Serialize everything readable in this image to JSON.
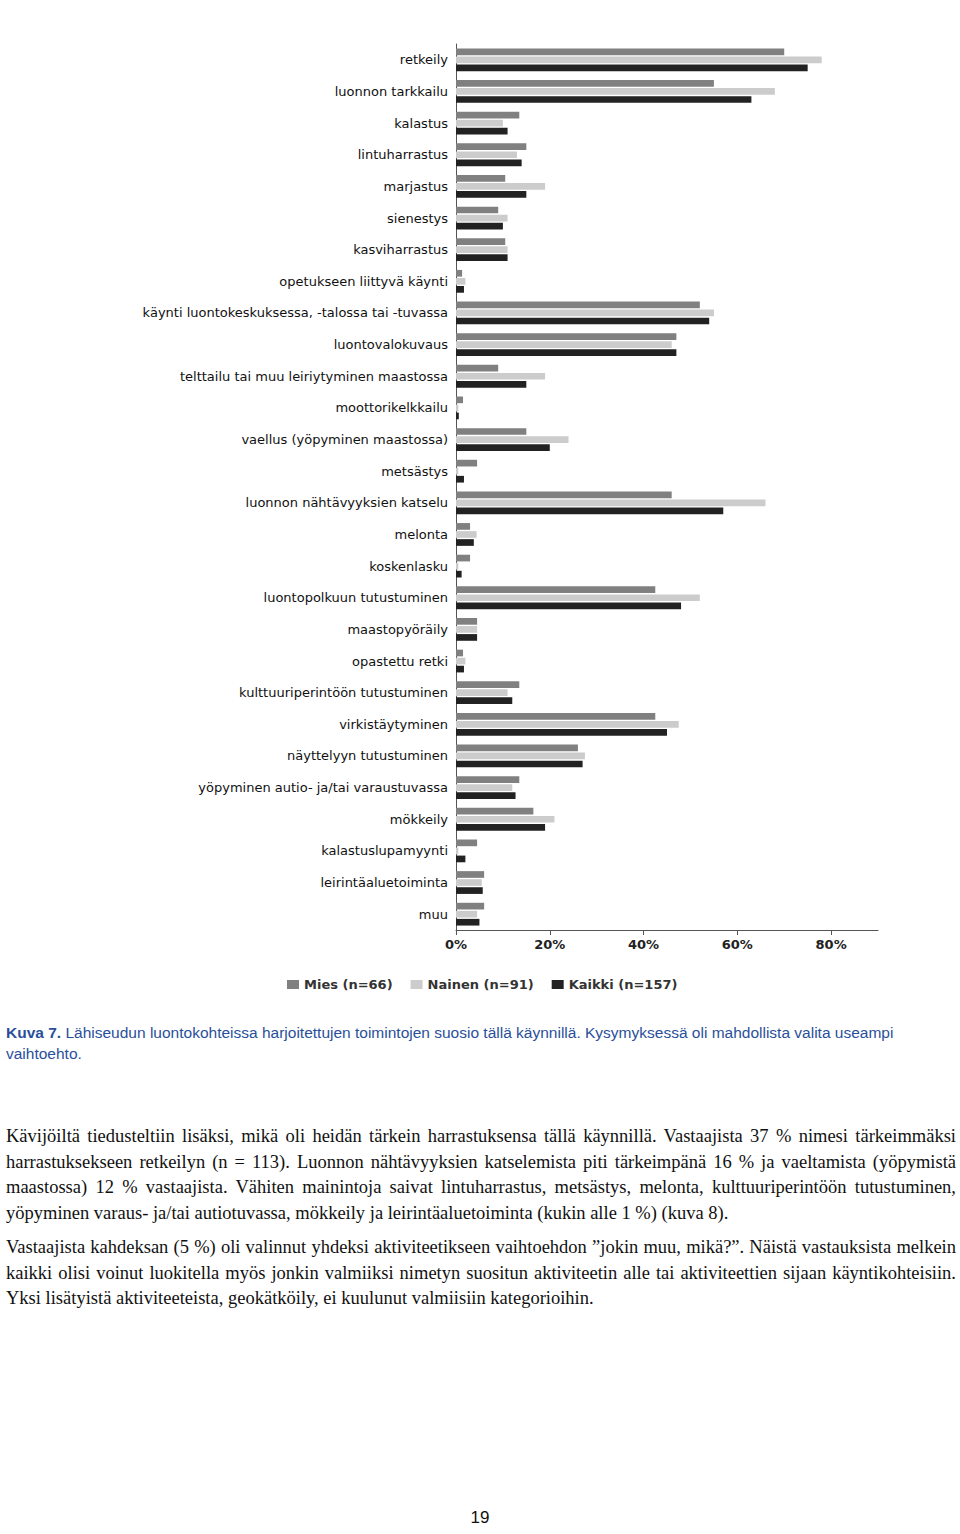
{
  "chart_data": {
    "type": "bar",
    "orientation": "horizontal",
    "grid": false,
    "legend": "bottom",
    "categories": [
      "retkeily",
      "luonnon tarkkailu",
      "kalastus",
      "lintuharrastus",
      "marjastus",
      "sienestys",
      "kasviharrastus",
      "opetukseen liittyvä käynti",
      "käynti luontokeskuksessa, -talossa tai -tuvassa",
      "luontovalokuvaus",
      "telttailu tai muu leiriytyminen maastossa",
      "moottorikelkkailu",
      "vaellus (yöpyminen maastossa)",
      "metsästys",
      "luonnon nähtävyyksien katselu",
      "melonta",
      "koskenlasku",
      "luontopolkuun tutustuminen",
      "maastopyöräily",
      "opastettu retki",
      "kulttuuriperintöön tutustuminen",
      "virkistäytyminen",
      "näyttelyyn tutustuminen",
      "yöpyminen autio- ja/tai varaustuvassa",
      "mökkeily",
      "kalastuslupamyynti",
      "leirintäaluetoiminta",
      "muu"
    ],
    "series": [
      {
        "name": "Mies (n=66)",
        "color": "#808080",
        "values": [
          70,
          55,
          13.5,
          15,
          10.5,
          9,
          10.5,
          1.3,
          52,
          47,
          9,
          1.5,
          15,
          4.5,
          46,
          3,
          3,
          42.5,
          4.5,
          1.5,
          13.5,
          42.5,
          26,
          13.5,
          16.5,
          4.5,
          6,
          6
        ]
      },
      {
        "name": "Nainen (n=91)",
        "color": "#cccccc",
        "values": [
          78,
          68,
          10,
          13,
          19,
          11,
          11,
          2,
          55,
          46,
          19,
          0.5,
          24,
          0.5,
          66,
          4.4,
          0.5,
          52,
          4.5,
          2,
          11,
          47.5,
          27.5,
          12,
          21,
          0.5,
          5.5,
          4.5
        ]
      },
      {
        "name": "Kaikki (n=157)",
        "color": "#222222",
        "values": [
          75,
          63,
          11,
          14,
          15,
          10,
          11,
          1.7,
          54,
          47,
          15,
          0.6,
          20,
          1.7,
          57,
          3.8,
          1.2,
          48,
          4.5,
          1.7,
          12,
          45,
          27,
          12.7,
          19,
          2,
          5.7,
          5
        ]
      }
    ],
    "xlim": [
      0,
      90
    ],
    "xticks": [
      {
        "value": 0,
        "label": "0%"
      },
      {
        "value": 20,
        "label": "20%"
      },
      {
        "value": 40,
        "label": "40%"
      },
      {
        "value": 60,
        "label": "60%"
      },
      {
        "value": 80,
        "label": "80%"
      }
    ]
  },
  "caption": {
    "label": "Kuva 7.",
    "text": "Lähiseudun luontokohteissa harjoitettujen toimintojen suosio tällä käynnillä. Kysymyksessä oli mahdollista valita useampi vaihtoehto."
  },
  "paragraphs": [
    "Kävijöiltä tiedusteltiin lisäksi, mikä oli heidän tärkein harrastuksensa tällä käynnillä. Vastaajista 37 % nimesi tärkeimmäksi harrastuksekseen retkeilyn (n = 113). Luonnon nähtävyyksien katselemista piti tärkeimpänä 16 % ja vaeltamista (yöpymistä maastossa) 12 % vastaajista. Vähiten mainintoja saivat lintuharrastus, metsästys, melonta, kulttuuriperintöön tutustuminen, yöpyminen varaus- ja/tai autiotuvassa, mökkeily ja leirintäaluetoiminta (kukin alle 1 %) (kuva 8).",
    "Vastaajista kahdeksan (5 %) oli valinnut yhdeksi aktiviteetikseen vaihtoehdon ”jokin muu, mikä?”. Näistä vastauksista melkein kaikki olisi voinut luokitella myös jonkin valmiiksi nimetyn suositun aktiviteetin alle tai aktiviteettien sijaan käyntikohteisiin. Yksi lisätyistä aktiviteeteista, geokätköily, ei kuulunut valmiisiin kategorioihin."
  ],
  "page_number": 19
}
